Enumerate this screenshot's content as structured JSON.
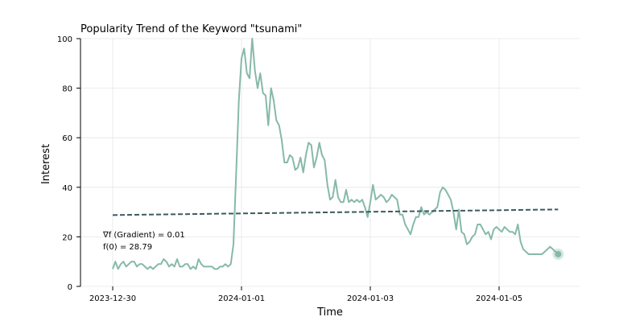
{
  "chart_data": {
    "type": "line",
    "title": "Popularity Trend of the Keyword \"tsunami\"",
    "xlabel": "Time",
    "ylabel": "Interest",
    "ylim": [
      0,
      100
    ],
    "yticks": [
      0,
      20,
      40,
      60,
      80,
      100
    ],
    "xlim": [
      "2023-12-29T12:00",
      "2024-01-06T06:00"
    ],
    "xticks": [
      {
        "t": "2023-12-30T00:00",
        "label": "2023-12-30"
      },
      {
        "t": "2024-01-01T00:00",
        "label": "2024-01-01"
      },
      {
        "t": "2024-01-03T00:00",
        "label": "2024-01-03"
      },
      {
        "t": "2024-01-05T00:00",
        "label": "2024-01-05"
      }
    ],
    "grid": true,
    "series": [
      {
        "color": "#86b9a9",
        "x": [
          "2023-12-30T00:00",
          "2023-12-30T01:00",
          "2023-12-30T02:00",
          "2023-12-30T03:00",
          "2023-12-30T04:00",
          "2023-12-30T05:00",
          "2023-12-30T06:00",
          "2023-12-30T07:00",
          "2023-12-30T08:00",
          "2023-12-30T09:00",
          "2023-12-30T10:00",
          "2023-12-30T11:00",
          "2023-12-30T12:00",
          "2023-12-30T13:00",
          "2023-12-30T14:00",
          "2023-12-30T15:00",
          "2023-12-30T16:00",
          "2023-12-30T17:00",
          "2023-12-30T18:00",
          "2023-12-30T19:00",
          "2023-12-30T20:00",
          "2023-12-30T21:00",
          "2023-12-30T22:00",
          "2023-12-30T23:00",
          "2023-12-31T00:00",
          "2023-12-31T01:00",
          "2023-12-31T02:00",
          "2023-12-31T03:00",
          "2023-12-31T04:00",
          "2023-12-31T05:00",
          "2023-12-31T06:00",
          "2023-12-31T07:00",
          "2023-12-31T08:00",
          "2023-12-31T09:00",
          "2023-12-31T10:00",
          "2023-12-31T11:00",
          "2023-12-31T12:00",
          "2023-12-31T13:00",
          "2023-12-31T14:00",
          "2023-12-31T15:00",
          "2023-12-31T16:00",
          "2023-12-31T17:00",
          "2023-12-31T18:00",
          "2023-12-31T19:00",
          "2023-12-31T20:00",
          "2023-12-31T21:00",
          "2023-12-31T22:00",
          "2023-12-31T23:00",
          "2024-01-01T00:00",
          "2024-01-01T01:00",
          "2024-01-01T02:00",
          "2024-01-01T03:00",
          "2024-01-01T04:00",
          "2024-01-01T05:00",
          "2024-01-01T06:00",
          "2024-01-01T07:00",
          "2024-01-01T08:00",
          "2024-01-01T09:00",
          "2024-01-01T10:00",
          "2024-01-01T11:00",
          "2024-01-01T12:00",
          "2024-01-01T13:00",
          "2024-01-01T14:00",
          "2024-01-01T15:00",
          "2024-01-01T16:00",
          "2024-01-01T17:00",
          "2024-01-01T18:00",
          "2024-01-01T19:00",
          "2024-01-01T20:00",
          "2024-01-01T21:00",
          "2024-01-01T22:00",
          "2024-01-01T23:00",
          "2024-01-02T00:00",
          "2024-01-02T01:00",
          "2024-01-02T02:00",
          "2024-01-02T03:00",
          "2024-01-02T04:00",
          "2024-01-02T05:00",
          "2024-01-02T06:00",
          "2024-01-02T07:00",
          "2024-01-02T08:00",
          "2024-01-02T09:00",
          "2024-01-02T10:00",
          "2024-01-02T11:00",
          "2024-01-02T12:00",
          "2024-01-02T13:00",
          "2024-01-02T14:00",
          "2024-01-02T15:00",
          "2024-01-02T16:00",
          "2024-01-02T17:00",
          "2024-01-02T18:00",
          "2024-01-02T19:00",
          "2024-01-02T20:00",
          "2024-01-02T21:00",
          "2024-01-02T22:00",
          "2024-01-02T23:00",
          "2024-01-03T00:00",
          "2024-01-03T01:00",
          "2024-01-03T02:00",
          "2024-01-03T03:00",
          "2024-01-03T04:00",
          "2024-01-03T05:00",
          "2024-01-03T06:00",
          "2024-01-03T07:00",
          "2024-01-03T08:00",
          "2024-01-03T09:00",
          "2024-01-03T10:00",
          "2024-01-03T11:00",
          "2024-01-03T12:00",
          "2024-01-03T13:00",
          "2024-01-03T14:00",
          "2024-01-03T15:00",
          "2024-01-03T16:00",
          "2024-01-03T17:00",
          "2024-01-03T18:00",
          "2024-01-03T19:00",
          "2024-01-03T20:00",
          "2024-01-03T21:00",
          "2024-01-03T22:00",
          "2024-01-03T23:00",
          "2024-01-04T00:00",
          "2024-01-04T01:00",
          "2024-01-04T02:00",
          "2024-01-04T03:00",
          "2024-01-04T04:00",
          "2024-01-04T05:00",
          "2024-01-04T06:00",
          "2024-01-04T07:00",
          "2024-01-04T08:00",
          "2024-01-04T09:00",
          "2024-01-04T10:00",
          "2024-01-04T11:00",
          "2024-01-04T12:00",
          "2024-01-04T13:00",
          "2024-01-04T14:00",
          "2024-01-04T15:00",
          "2024-01-04T16:00",
          "2024-01-04T17:00",
          "2024-01-04T18:00",
          "2024-01-04T19:00",
          "2024-01-04T20:00",
          "2024-01-04T21:00",
          "2024-01-04T22:00",
          "2024-01-04T23:00",
          "2024-01-05T00:00",
          "2024-01-05T01:00",
          "2024-01-05T02:00",
          "2024-01-05T03:00",
          "2024-01-05T04:00",
          "2024-01-05T05:00",
          "2024-01-05T06:00",
          "2024-01-05T07:00",
          "2024-01-05T08:00",
          "2024-01-05T09:00",
          "2024-01-05T10:00",
          "2024-01-05T11:00",
          "2024-01-05T12:00",
          "2024-01-05T13:00",
          "2024-01-05T14:00",
          "2024-01-05T15:00",
          "2024-01-05T16:00",
          "2024-01-05T17:00",
          "2024-01-05T18:00",
          "2024-01-05T19:00",
          "2024-01-05T20:00",
          "2024-01-05T21:00",
          "2024-01-05T22:00"
        ],
        "y": [
          7,
          10,
          7,
          9,
          10,
          8,
          9,
          10,
          10,
          8,
          9,
          9,
          8,
          7,
          8,
          7,
          8,
          9,
          9,
          11,
          10,
          8,
          9,
          8,
          11,
          8,
          8,
          9,
          9,
          7,
          8,
          7,
          11,
          9,
          8,
          8,
          8,
          8,
          7,
          7,
          8,
          8,
          9,
          8,
          9,
          17,
          45,
          75,
          92,
          96,
          86,
          84,
          100,
          87,
          80,
          86,
          78,
          77,
          65,
          80,
          75,
          67,
          65,
          59,
          50,
          50,
          53,
          52,
          47,
          48,
          52,
          46,
          53,
          58,
          57,
          48,
          52,
          58,
          53,
          51,
          41,
          35,
          36,
          43,
          36,
          34,
          34,
          39,
          34,
          35,
          34,
          35,
          34,
          35,
          32,
          28,
          34,
          41,
          35,
          36,
          37,
          36,
          34,
          35,
          37,
          36,
          35,
          29,
          29,
          25,
          23,
          21,
          25,
          28,
          28,
          32,
          29,
          30,
          29,
          30,
          31,
          32,
          38,
          40,
          39,
          37,
          35,
          30,
          23,
          31,
          22,
          21,
          17,
          18,
          20,
          21,
          25,
          25,
          23,
          21,
          22,
          19,
          23,
          24,
          23,
          22,
          24,
          23,
          22,
          22,
          21,
          25,
          18,
          15,
          14,
          13,
          13,
          13,
          13,
          13,
          13,
          14,
          15,
          16,
          15,
          14,
          13
        ]
      }
    ],
    "trend": {
      "color": "#3d5a5c",
      "x": [
        "2023-12-30T00:00",
        "2024-01-05T22:00"
      ],
      "y": [
        28.79,
        31.05
      ]
    },
    "end_marker": {
      "x": "2024-01-05T22:00",
      "y": 13
    },
    "annotation_lines": [
      "∇f (Gradient) = 0.01",
      "f(0) = 28.79"
    ]
  }
}
